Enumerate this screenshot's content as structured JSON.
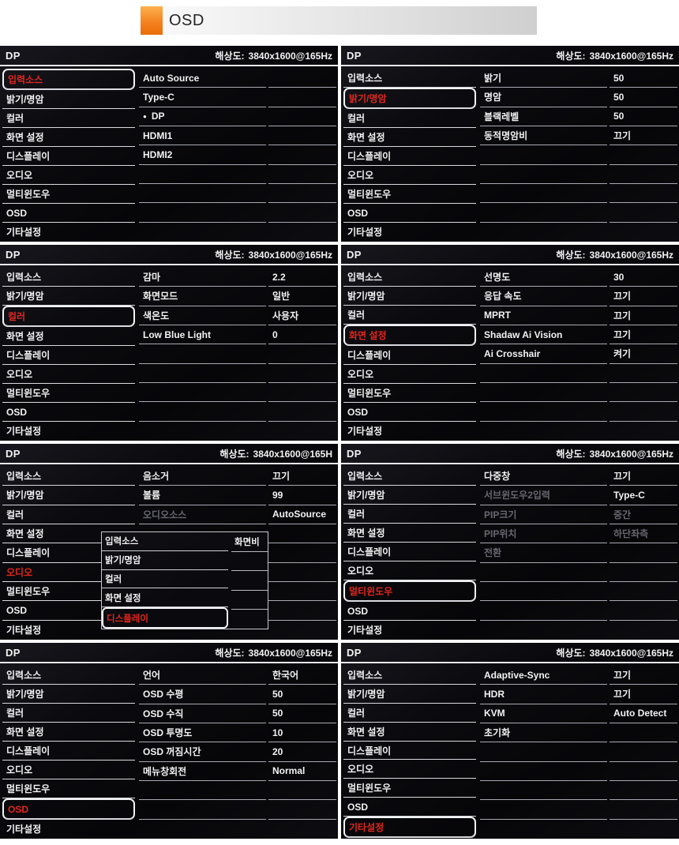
{
  "header": {
    "icon": "orange-square-icon",
    "title": "OSD"
  },
  "colors": {
    "accent_orange": "#f58220",
    "highlight_red": "#e3261d",
    "osd_bg": "#0a0a0e"
  },
  "shared": {
    "menu_items": [
      "입력소스",
      "밝기/명암",
      "컬러",
      "화면 설정",
      "디스플레이",
      "오디오",
      "멀티윈도우",
      "OSD",
      "기타설정"
    ]
  },
  "panels": [
    {
      "id": "input-source",
      "source": "DP",
      "res_label": "해상도:",
      "res_value": "3840x1600@165Hz",
      "selected_index": 0,
      "selected_style": "box",
      "rows": [
        {
          "name": "Auto Source"
        },
        {
          "name": "Type-C"
        },
        {
          "name": "DP",
          "bullet": true
        },
        {
          "name": "HDMI1"
        },
        {
          "name": "HDMI2"
        }
      ]
    },
    {
      "id": "brightness-contrast",
      "source": "DP",
      "res_label": "해상도:",
      "res_value": "3840x1600@165Hz",
      "selected_index": 1,
      "selected_style": "box",
      "rows": [
        {
          "name": "밝기",
          "value": "50"
        },
        {
          "name": "명암",
          "value": "50"
        },
        {
          "name": "블랙레벨",
          "value": "50"
        },
        {
          "name": "동적명암비",
          "value": "끄기"
        }
      ]
    },
    {
      "id": "color",
      "source": "DP",
      "res_label": "해상도:",
      "res_value": "3840x1600@165Hz",
      "selected_index": 2,
      "selected_style": "box",
      "rows": [
        {
          "name": "감마",
          "value": "2.2"
        },
        {
          "name": "화면모드",
          "value": "일반"
        },
        {
          "name": "색온도",
          "value": "사용자"
        },
        {
          "name": "Low Blue Light",
          "value": "0"
        }
      ]
    },
    {
      "id": "screen-settings",
      "source": "DP",
      "res_label": "해상도:",
      "res_value": "3840x1600@165Hz",
      "selected_index": 3,
      "selected_style": "box",
      "rows": [
        {
          "name": "선명도",
          "value": "30"
        },
        {
          "name": "응답 속도",
          "value": "끄기"
        },
        {
          "name": "MPRT",
          "value": "끄기"
        },
        {
          "name": "Shadaw Ai Vision",
          "value": "끄기"
        },
        {
          "name": "Ai Crosshair",
          "value": "켜기"
        }
      ]
    },
    {
      "id": "audio",
      "source": "DP",
      "res_label": "해상도:",
      "res_value": "3840x1600@165H",
      "selected_index": 5,
      "selected_style": "plain",
      "rows": [
        {
          "name": "음소거",
          "value": "끄기"
        },
        {
          "name": "볼륨",
          "value": "99"
        },
        {
          "name": "오디오소스",
          "value": "AutoSource",
          "name_disabled": true
        }
      ],
      "popup": {
        "menu_items": [
          "입력소스",
          "밝기/명암",
          "컬러",
          "화면 설정",
          "디스플레이"
        ],
        "selected_index": 4,
        "right_label": "화면비"
      }
    },
    {
      "id": "multi-window",
      "source": "DP",
      "res_label": "해상도:",
      "res_value": "3840x1600@165Hz",
      "selected_index": 6,
      "selected_style": "box",
      "rows": [
        {
          "name": "다중창",
          "value": "끄기"
        },
        {
          "name": "서브윈도우2입력",
          "value": "Type-C",
          "name_disabled": true
        },
        {
          "name": "PIP크기",
          "value": "중간",
          "name_disabled": true,
          "value_disabled": true
        },
        {
          "name": "PIP위치",
          "value": "하단좌측",
          "name_disabled": true,
          "value_disabled": true
        },
        {
          "name": "전환",
          "name_disabled": true
        }
      ]
    },
    {
      "id": "osd",
      "source": "DP",
      "res_label": "해상도:",
      "res_value": "3840x1600@165Hz",
      "selected_index": 7,
      "selected_style": "box",
      "rows": [
        {
          "name": "언어",
          "value": "한국어"
        },
        {
          "name": "OSD 수평",
          "value": "50"
        },
        {
          "name": "OSD 수직",
          "value": "50"
        },
        {
          "name": "OSD 투명도",
          "value": "10"
        },
        {
          "name": "OSD 꺼짐시간",
          "value": "20"
        },
        {
          "name": "메뉴창회전",
          "value": "Normal"
        }
      ]
    },
    {
      "id": "etc-settings",
      "source": "DP",
      "res_label": "해상도:",
      "res_value": "3840x1600@165Hz",
      "selected_index": 8,
      "selected_style": "box",
      "rows": [
        {
          "name": "Adaptive-Sync",
          "value": "끄기"
        },
        {
          "name": "HDR",
          "value": "끄기"
        },
        {
          "name": "KVM",
          "value": "Auto Detect"
        },
        {
          "name": "초기화"
        }
      ]
    }
  ]
}
